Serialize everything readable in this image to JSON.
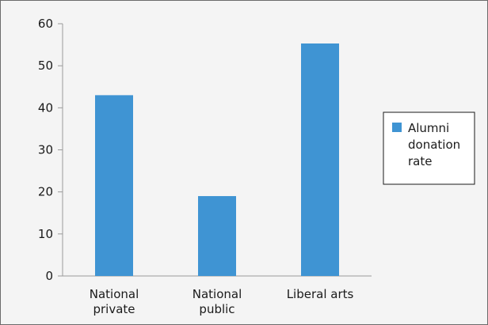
{
  "chart_data": {
    "type": "bar",
    "categories": [
      [
        "National",
        "private"
      ],
      [
        "National",
        "public"
      ],
      [
        "Liberal arts"
      ]
    ],
    "series": [
      {
        "name": "Alumni donation rate",
        "values": [
          43,
          19,
          55.3
        ],
        "color": "#3f94d3"
      }
    ],
    "ylim": [
      0,
      60
    ],
    "yticks": [
      0,
      10,
      20,
      30,
      40,
      50,
      60
    ],
    "grid": false,
    "legend_position": "right",
    "legend_lines": [
      "Alumni",
      "donation",
      "rate"
    ]
  }
}
